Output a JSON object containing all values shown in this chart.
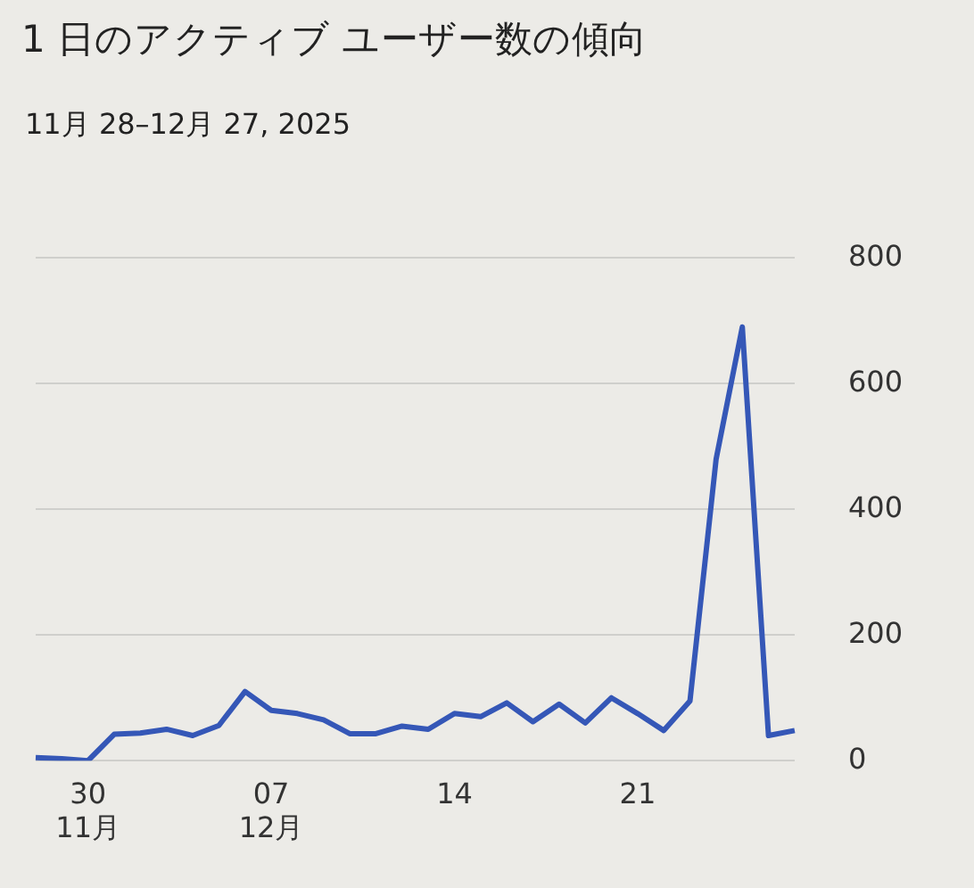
{
  "chart_data": {
    "type": "line",
    "title": "1 日のアクティブ ユーザー数の傾向",
    "subtitle": "11月 28–12月 27, 2025",
    "categories": [
      null,
      null,
      "30\n11月",
      null,
      null,
      null,
      null,
      null,
      null,
      "07\n12月",
      null,
      null,
      null,
      null,
      null,
      null,
      "14",
      null,
      null,
      null,
      null,
      null,
      null,
      "21",
      null,
      null,
      null,
      null,
      null,
      null
    ],
    "series": [
      {
        "color": "#3557b7",
        "values": [
          5,
          3,
          0,
          42,
          44,
          50,
          40,
          56,
          110,
          80,
          75,
          65,
          43,
          43,
          55,
          50,
          75,
          70,
          92,
          62,
          90,
          60,
          100,
          75,
          48,
          95,
          480,
          690,
          40,
          48
        ]
      }
    ],
    "ylim": [
      0,
      800
    ],
    "yticks": [
      0,
      200,
      400,
      600,
      800
    ],
    "grid": "y",
    "legend": false,
    "marker": "none",
    "line_style": "solid"
  }
}
